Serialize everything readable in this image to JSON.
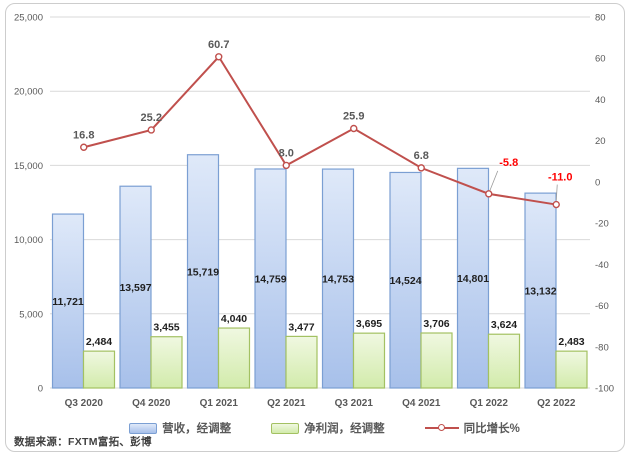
{
  "chart": {
    "source_note": "数据来源：FXTM富拓、彭博"
  },
  "chart_data": {
    "type": "combo-bar-line",
    "categories": [
      "Q3 2020",
      "Q4 2020",
      "Q1 2021",
      "Q2 2021",
      "Q3 2021",
      "Q4 2021",
      "Q1 2022",
      "Q2 2022"
    ],
    "series": [
      {
        "name": "营收，经调整",
        "type": "bar",
        "axis": "left",
        "values": [
          11721,
          13597,
          15719,
          14759,
          14753,
          14524,
          14801,
          13132
        ],
        "labels": [
          "11,721",
          "13,597",
          "15,719",
          "14,759",
          "14,753",
          "14,524",
          "14,801",
          "13,132"
        ],
        "fill_top": "#dfe9f9",
        "fill_bottom": "#a7c0ea",
        "border": "#7b9fd3"
      },
      {
        "name": "净利润，经调整",
        "type": "bar",
        "axis": "left",
        "values": [
          2484,
          3455,
          4040,
          3477,
          3695,
          3706,
          3624,
          2483
        ],
        "labels": [
          "2,484",
          "3,455",
          "4,040",
          "3,477",
          "3,695",
          "3,706",
          "3,624",
          "2,483"
        ],
        "fill_top": "#f0f8e1",
        "fill_bottom": "#d2ebab",
        "border": "#a3c162"
      },
      {
        "name": "同比增长%",
        "type": "line",
        "axis": "right",
        "values": [
          16.8,
          25.2,
          60.7,
          8.0,
          25.9,
          6.8,
          -5.8,
          -11.0
        ],
        "labels": [
          "16.8",
          "25.2",
          "60.7",
          "8.0",
          "25.9",
          "6.8",
          "-5.8",
          "-11.0"
        ],
        "color": "#c0504d",
        "label_color": "#595959",
        "negative_label_color": "#ff0000"
      }
    ],
    "left_axis": {
      "min": 0,
      "max": 25000,
      "ticks": [
        "0",
        "5,000",
        "10,000",
        "15,000",
        "20,000",
        "25,000"
      ]
    },
    "right_axis": {
      "min": -100,
      "max": 80,
      "ticks": [
        "-100",
        "-80",
        "-60",
        "-40",
        "-20",
        "0",
        "20",
        "40",
        "60",
        "80"
      ]
    },
    "grid": true,
    "gridline_color": "#d9d9d9",
    "axis_label_color": "#595959",
    "bar_label_color": "#1f1f1f",
    "legend_position": "bottom"
  }
}
